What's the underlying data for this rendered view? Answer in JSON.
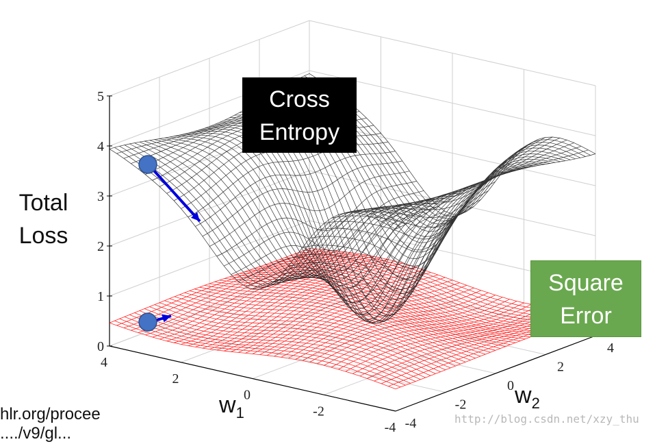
{
  "chart_data": {
    "type": "surface",
    "z_axis_label": [
      "Total",
      "Loss"
    ],
    "x_axis_label": {
      "base": "w",
      "sub": "1"
    },
    "y_axis_label": {
      "base": "w",
      "sub": "2"
    },
    "z_ticks": [
      "0",
      "1",
      "2",
      "3",
      "4",
      "5"
    ],
    "w1_ticks": [
      "4",
      "2",
      "0",
      "-2",
      "-4"
    ],
    "w2_ticks": [
      "-4",
      "-2",
      "0",
      "2",
      "4"
    ],
    "zlim": [
      0,
      5
    ],
    "w1_range": [
      -4,
      4
    ],
    "w2_range": [
      -4,
      4
    ],
    "series": [
      {
        "name": "Cross Entropy",
        "name_lines": [
          "Cross",
          "Entropy"
        ],
        "color": "#000000",
        "label_bg": "#000000"
      },
      {
        "name": "Square Error",
        "name_lines": [
          "Square",
          "Error"
        ],
        "color": "#ff0000",
        "label_bg": "#6aa84f"
      }
    ],
    "annotations": {
      "cross_entropy_start": {
        "w1": 4,
        "w2": -4,
        "loss": 3.8,
        "color": "#4472c4"
      },
      "square_error_start": {
        "w1": 4,
        "w2": -4,
        "loss": 0.4,
        "color": "#4472c4"
      }
    }
  },
  "citation": {
    "line1": "hlr.org/procee",
    "line2": "..../v9/gl..."
  },
  "watermark": "http://blog.csdn.net/xzy_thu"
}
